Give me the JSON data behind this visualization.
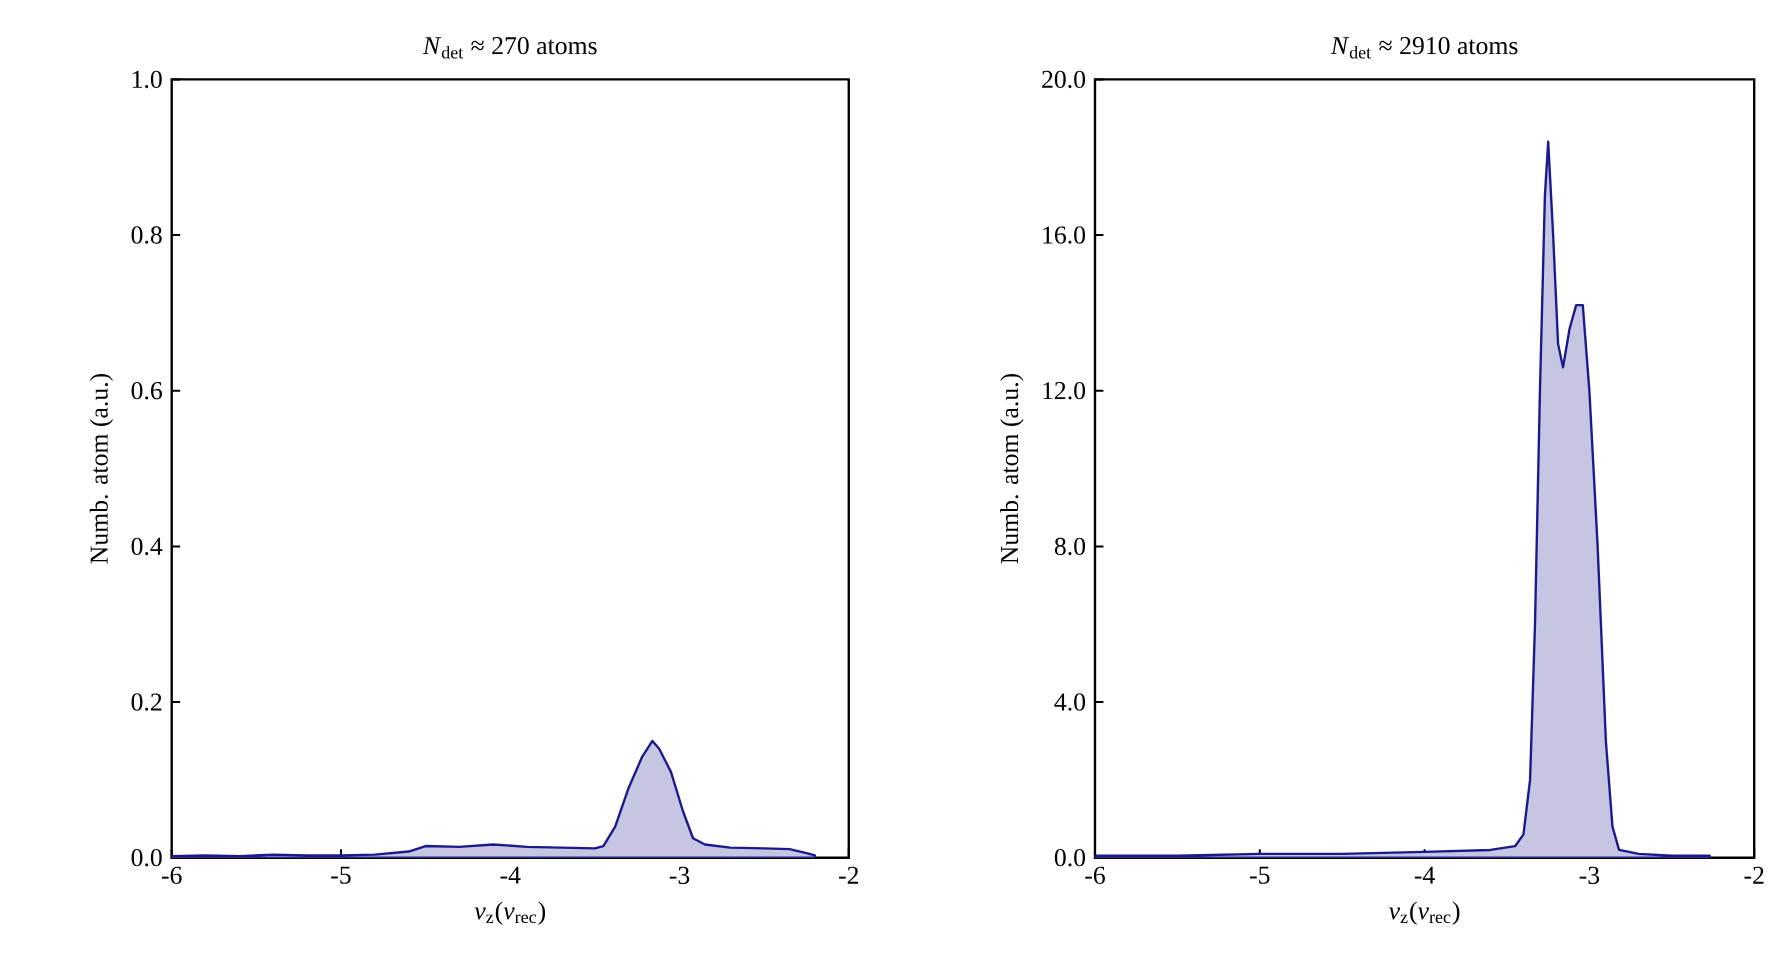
{
  "chart_data": [
    {
      "type": "area",
      "title": "*N*$_{det}$ ≈ 270 atoms",
      "xlabel": "*v*$_{z}$(*v*$_{rec}$)",
      "ylabel": "Numb. atom (a.u.)",
      "xlim": [
        -6,
        -2
      ],
      "xticks": [
        -6,
        -5,
        -4,
        -3,
        -2
      ],
      "ylim": [
        0,
        1
      ],
      "yticks": [
        {
          "value": 0,
          "label": "0.0"
        },
        {
          "value": 0.2,
          "label": "0.2"
        },
        {
          "value": 0.4,
          "label": "0.4"
        },
        {
          "value": 0.6,
          "label": "0.6"
        },
        {
          "value": 0.8,
          "label": "0.8"
        },
        {
          "value": 1,
          "label": "1.0"
        }
      ],
      "series": [
        {
          "color": "#1a1a8c",
          "x": [
            -6,
            -5.8,
            -5.6,
            -5.4,
            -5.2,
            -5.0,
            -4.8,
            -4.6,
            -4.5,
            -4.3,
            -4.1,
            -3.9,
            -3.7,
            -3.5,
            -3.45,
            -3.38,
            -3.3,
            -3.22,
            -3.16,
            -3.12,
            -3.05,
            -2.98,
            -2.92,
            -2.85,
            -2.7,
            -2.5,
            -2.35,
            -2.25,
            -2.2
          ],
          "values": [
            0.002,
            0.003,
            0.002,
            0.004,
            0.003,
            0.003,
            0.004,
            0.008,
            0.015,
            0.014,
            0.017,
            0.014,
            0.013,
            0.012,
            0.015,
            0.04,
            0.09,
            0.13,
            0.15,
            0.14,
            0.11,
            0.06,
            0.025,
            0.017,
            0.013,
            0.012,
            0.011,
            0.006,
            0.003
          ]
        }
      ]
    },
    {
      "type": "area",
      "title": "*N*$_{det}$ ≈ 2910 atoms",
      "xlabel": "*v*$_{z}$(*v*$_{rec}$)",
      "ylabel": "Numb. atom (a.u.)",
      "xlim": [
        -6,
        -2
      ],
      "xticks": [
        -6,
        -5,
        -4,
        -3,
        -2
      ],
      "ylim": [
        0,
        20
      ],
      "yticks": [
        {
          "value": 0,
          "label": "0.0"
        },
        {
          "value": 4,
          "label": "4.0"
        },
        {
          "value": 8,
          "label": "8.0"
        },
        {
          "value": 12,
          "label": "12.0"
        },
        {
          "value": 16,
          "label": "16.0"
        },
        {
          "value": 20,
          "label": "20.0"
        }
      ],
      "series": [
        {
          "color": "#1a1a8c",
          "x": [
            -6,
            -5.5,
            -5,
            -4.5,
            -4,
            -3.6,
            -3.45,
            -3.4,
            -3.36,
            -3.33,
            -3.3,
            -3.27,
            -3.25,
            -3.22,
            -3.19,
            -3.16,
            -3.12,
            -3.08,
            -3.04,
            -3.0,
            -2.95,
            -2.9,
            -2.86,
            -2.82,
            -2.7,
            -2.5,
            -2.27
          ],
          "values": [
            0.05,
            0.05,
            0.1,
            0.1,
            0.15,
            0.2,
            0.3,
            0.6,
            2,
            6,
            12,
            17,
            18.4,
            16,
            13.2,
            12.6,
            13.6,
            14.2,
            14.2,
            12,
            8,
            3,
            0.8,
            0.2,
            0.1,
            0.05,
            0.05
          ]
        }
      ]
    }
  ]
}
